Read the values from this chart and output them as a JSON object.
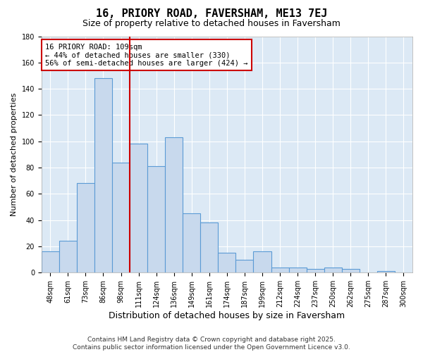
{
  "title": "16, PRIORY ROAD, FAVERSHAM, ME13 7EJ",
  "subtitle": "Size of property relative to detached houses in Faversham",
  "xlabel": "Distribution of detached houses by size in Faversham",
  "ylabel": "Number of detached properties",
  "bar_labels": [
    "48sqm",
    "61sqm",
    "73sqm",
    "86sqm",
    "98sqm",
    "111sqm",
    "124sqm",
    "136sqm",
    "149sqm",
    "161sqm",
    "174sqm",
    "187sqm",
    "199sqm",
    "212sqm",
    "224sqm",
    "237sqm",
    "250sqm",
    "262sqm",
    "275sqm",
    "287sqm",
    "300sqm"
  ],
  "bar_values": [
    16,
    24,
    68,
    148,
    84,
    98,
    81,
    103,
    45,
    38,
    15,
    10,
    16,
    4,
    4,
    3,
    4,
    3,
    0,
    1,
    0
  ],
  "bar_color": "#c8d9ed",
  "bar_edgecolor": "#5b9bd5",
  "vline_x_index": 5,
  "vline_color": "#cc0000",
  "annotation_text": "16 PRIORY ROAD: 109sqm\n← 44% of detached houses are smaller (330)\n56% of semi-detached houses are larger (424) →",
  "annotation_box_color": "white",
  "annotation_box_edgecolor": "#cc0000",
  "ylim": [
    0,
    180
  ],
  "yticks": [
    0,
    20,
    40,
    60,
    80,
    100,
    120,
    140,
    160,
    180
  ],
  "background_color": "#dce9f5",
  "footer_line1": "Contains HM Land Registry data © Crown copyright and database right 2025.",
  "footer_line2": "Contains public sector information licensed under the Open Government Licence v3.0.",
  "title_fontsize": 11,
  "subtitle_fontsize": 9,
  "xlabel_fontsize": 9,
  "ylabel_fontsize": 8,
  "tick_fontsize": 7,
  "annotation_fontsize": 7.5,
  "footer_fontsize": 6.5
}
